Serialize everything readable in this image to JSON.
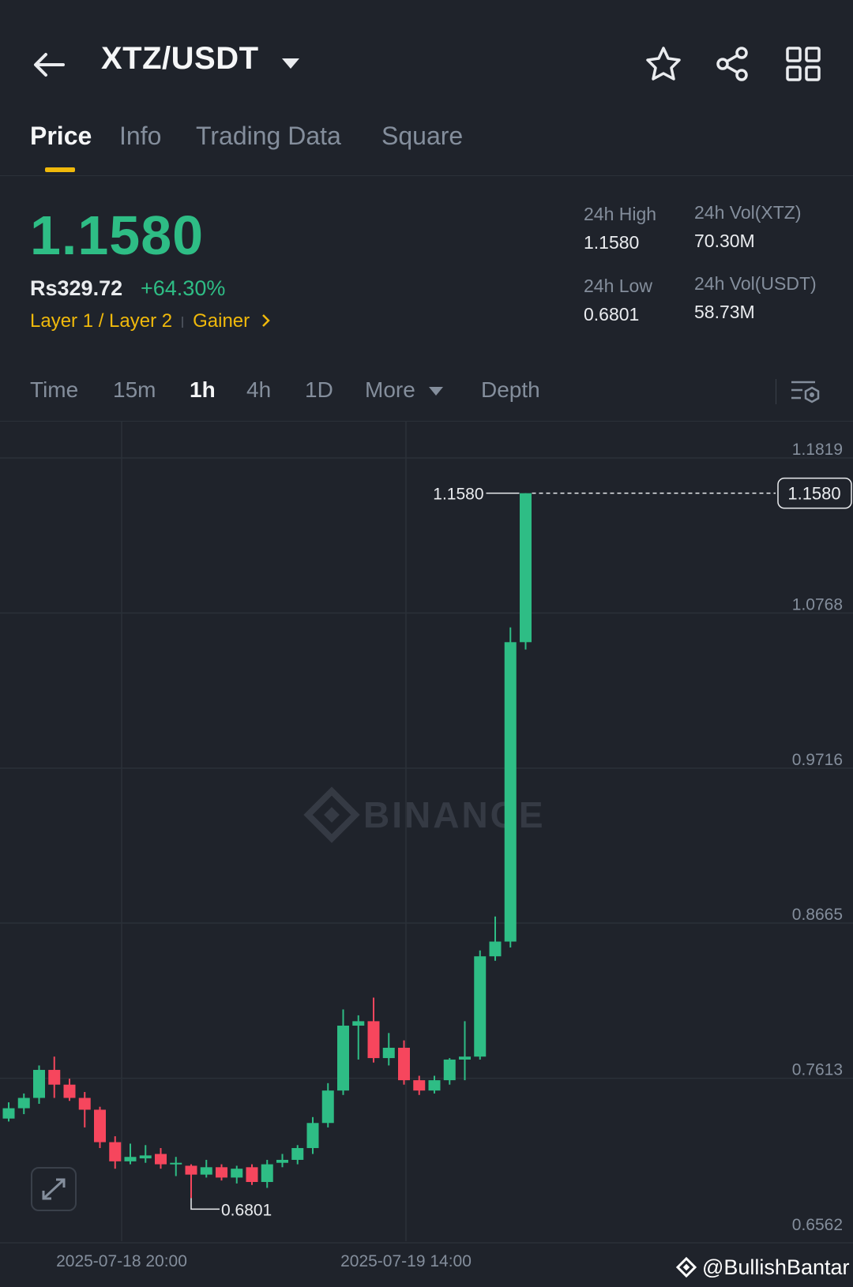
{
  "header": {
    "pair": "XTZ/USDT",
    "icons": [
      "back-arrow-icon",
      "chevron-down-icon",
      "star-icon",
      "share-icon",
      "grid-icon"
    ]
  },
  "tabs": [
    {
      "label": "Price",
      "active": true
    },
    {
      "label": "Info",
      "active": false
    },
    {
      "label": "Trading Data",
      "active": false
    },
    {
      "label": "Square",
      "active": false
    }
  ],
  "ticker": {
    "last_price": "1.1580",
    "fiat_price": "Rs329.72",
    "change_pct": "+64.30%",
    "tag1": "Layer 1 / Layer 2",
    "tag2": "Gainer",
    "high_label": "24h High",
    "high_value": "1.1580",
    "low_label": "24h Low",
    "low_value": "0.6801",
    "vol_base_label": "24h Vol(XTZ)",
    "vol_base_value": "70.30M",
    "vol_quote_label": "24h Vol(USDT)",
    "vol_quote_value": "58.73M"
  },
  "timeframes": {
    "items": [
      {
        "label": "Time",
        "active": false
      },
      {
        "label": "15m",
        "active": false
      },
      {
        "label": "1h",
        "active": true
      },
      {
        "label": "4h",
        "active": false
      },
      {
        "label": "1D",
        "active": false
      }
    ],
    "more": "More",
    "depth": "Depth"
  },
  "colors": {
    "up": "#2ebd85",
    "down": "#f6465d",
    "accent": "#f0b90b",
    "bg": "#1f232b"
  },
  "chart_data": {
    "type": "candlestick",
    "interval": "1h",
    "y_ticks": [
      "1.1819",
      "1.0768",
      "0.9716",
      "0.8665",
      "0.7613",
      "0.6562"
    ],
    "ylim": [
      0.6562,
      1.1819
    ],
    "x_tick_labels": [
      "2025-07-18 20:00",
      "2025-07-19 14:00"
    ],
    "current_price": 1.158,
    "current_price_label": "1.1580",
    "high_marker": {
      "value": 1.158,
      "label": "1.1580"
    },
    "low_marker": {
      "value": 0.6801,
      "label": "0.6801"
    },
    "watermark": "BINANCE",
    "candles": [
      {
        "o": 0.734,
        "c": 0.741,
        "h": 0.745,
        "l": 0.732
      },
      {
        "o": 0.741,
        "c": 0.748,
        "h": 0.751,
        "l": 0.737
      },
      {
        "o": 0.748,
        "c": 0.767,
        "h": 0.77,
        "l": 0.744
      },
      {
        "o": 0.767,
        "c": 0.757,
        "h": 0.776,
        "l": 0.748
      },
      {
        "o": 0.757,
        "c": 0.748,
        "h": 0.761,
        "l": 0.746
      },
      {
        "o": 0.748,
        "c": 0.74,
        "h": 0.752,
        "l": 0.728
      },
      {
        "o": 0.74,
        "c": 0.718,
        "h": 0.742,
        "l": 0.714
      },
      {
        "o": 0.718,
        "c": 0.705,
        "h": 0.722,
        "l": 0.7
      },
      {
        "o": 0.705,
        "c": 0.708,
        "h": 0.717,
        "l": 0.703
      },
      {
        "o": 0.707,
        "c": 0.709,
        "h": 0.716,
        "l": 0.704
      },
      {
        "o": 0.71,
        "c": 0.703,
        "h": 0.714,
        "l": 0.7
      },
      {
        "o": 0.703,
        "c": 0.704,
        "h": 0.708,
        "l": 0.695
      },
      {
        "o": 0.702,
        "c": 0.696,
        "h": 0.703,
        "l": 0.6801
      },
      {
        "o": 0.696,
        "c": 0.701,
        "h": 0.706,
        "l": 0.694
      },
      {
        "o": 0.701,
        "c": 0.694,
        "h": 0.703,
        "l": 0.692
      },
      {
        "o": 0.694,
        "c": 0.7,
        "h": 0.702,
        "l": 0.69
      },
      {
        "o": 0.701,
        "c": 0.691,
        "h": 0.703,
        "l": 0.689
      },
      {
        "o": 0.691,
        "c": 0.703,
        "h": 0.706,
        "l": 0.687
      },
      {
        "o": 0.704,
        "c": 0.706,
        "h": 0.71,
        "l": 0.701
      },
      {
        "o": 0.706,
        "c": 0.714,
        "h": 0.716,
        "l": 0.703
      },
      {
        "o": 0.714,
        "c": 0.731,
        "h": 0.735,
        "l": 0.71
      },
      {
        "o": 0.731,
        "c": 0.753,
        "h": 0.758,
        "l": 0.728
      },
      {
        "o": 0.753,
        "c": 0.797,
        "h": 0.808,
        "l": 0.75
      },
      {
        "o": 0.797,
        "c": 0.8,
        "h": 0.804,
        "l": 0.774
      },
      {
        "o": 0.8,
        "c": 0.775,
        "h": 0.816,
        "l": 0.772
      },
      {
        "o": 0.775,
        "c": 0.782,
        "h": 0.792,
        "l": 0.77
      },
      {
        "o": 0.782,
        "c": 0.76,
        "h": 0.787,
        "l": 0.757
      },
      {
        "o": 0.76,
        "c": 0.753,
        "h": 0.763,
        "l": 0.75
      },
      {
        "o": 0.753,
        "c": 0.76,
        "h": 0.763,
        "l": 0.751
      },
      {
        "o": 0.76,
        "c": 0.774,
        "h": 0.775,
        "l": 0.757
      },
      {
        "o": 0.774,
        "c": 0.776,
        "h": 0.8,
        "l": 0.76
      },
      {
        "o": 0.776,
        "c": 0.844,
        "h": 0.848,
        "l": 0.774
      },
      {
        "o": 0.844,
        "c": 0.854,
        "h": 0.871,
        "l": 0.841
      },
      {
        "o": 0.854,
        "c": 1.057,
        "h": 1.067,
        "l": 0.85
      },
      {
        "o": 1.057,
        "c": 1.158,
        "h": 1.158,
        "l": 1.052
      }
    ]
  },
  "footer": {
    "watermark": "@BullishBantar"
  }
}
